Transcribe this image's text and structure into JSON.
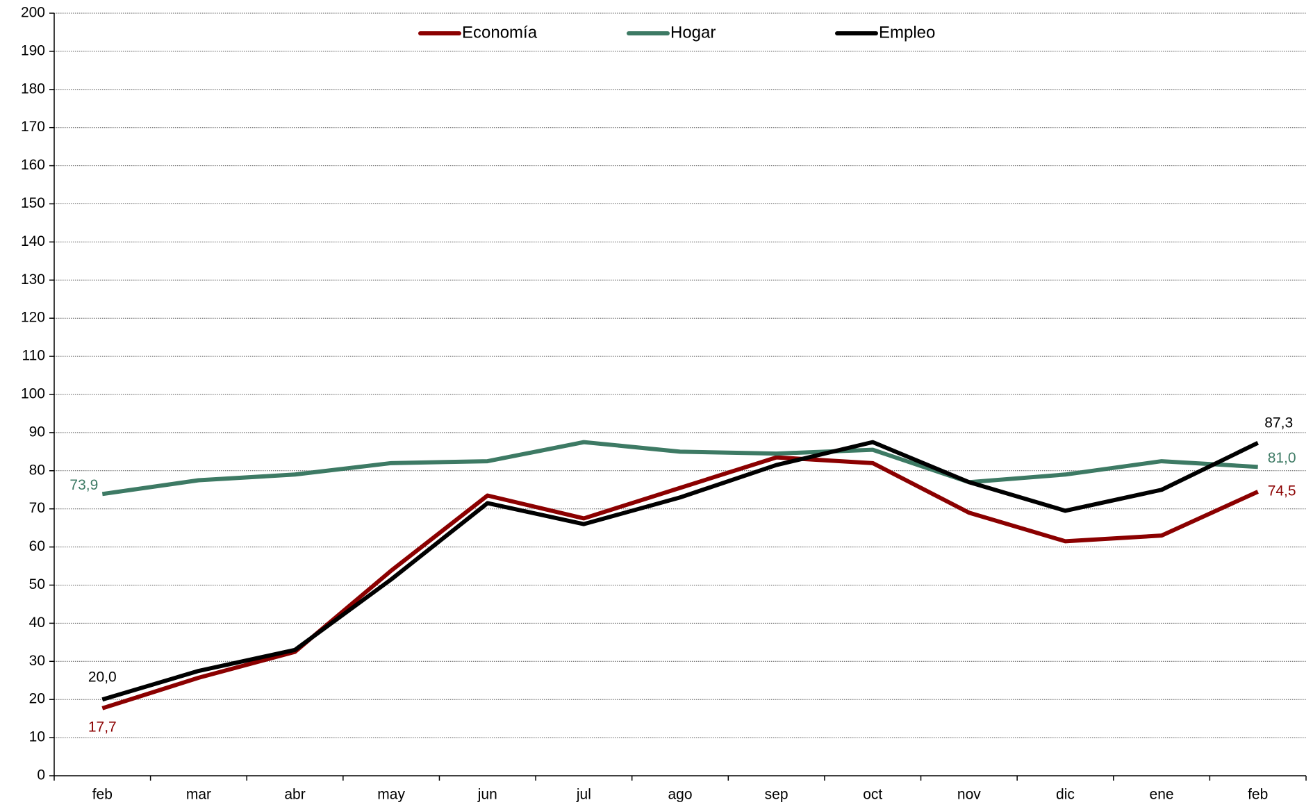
{
  "chart_data": {
    "type": "line",
    "categories": [
      "feb",
      "mar",
      "abr",
      "may",
      "jun",
      "jul",
      "ago",
      "sep",
      "oct",
      "nov",
      "dic",
      "ene",
      "feb"
    ],
    "series": [
      {
        "name": "Economía",
        "color": "#8b0000",
        "values": [
          17.7,
          25.7,
          32.5,
          53.8,
          73.5,
          67.5,
          75.5,
          83.5,
          82.0,
          69.0,
          61.5,
          63.0,
          74.5
        ],
        "value_labels": [
          "17,7",
          null,
          null,
          null,
          null,
          null,
          null,
          null,
          null,
          null,
          null,
          null,
          "74,5"
        ]
      },
      {
        "name": "Hogar",
        "color": "#3d7a64",
        "values": [
          73.9,
          77.5,
          79.0,
          82.0,
          82.5,
          87.5,
          85.0,
          84.5,
          85.5,
          77.0,
          79.0,
          82.5,
          81.0
        ],
        "value_labels": [
          "73,9",
          null,
          null,
          null,
          null,
          null,
          null,
          null,
          null,
          null,
          null,
          null,
          "81,0"
        ]
      },
      {
        "name": "Empleo",
        "color": "#000000",
        "values": [
          20.0,
          27.5,
          33.0,
          51.5,
          71.5,
          66.0,
          73.0,
          81.5,
          87.5,
          77.0,
          69.5,
          75.0,
          87.3
        ],
        "value_labels": [
          "20,0",
          null,
          null,
          null,
          null,
          null,
          null,
          null,
          null,
          null,
          null,
          null,
          "87,3"
        ]
      }
    ],
    "ylim": [
      0,
      200
    ],
    "yticks": [
      0,
      10,
      20,
      30,
      40,
      50,
      60,
      70,
      80,
      90,
      100,
      110,
      120,
      130,
      140,
      150,
      160,
      170,
      180,
      190,
      200
    ],
    "grid": true,
    "legend": "top"
  }
}
